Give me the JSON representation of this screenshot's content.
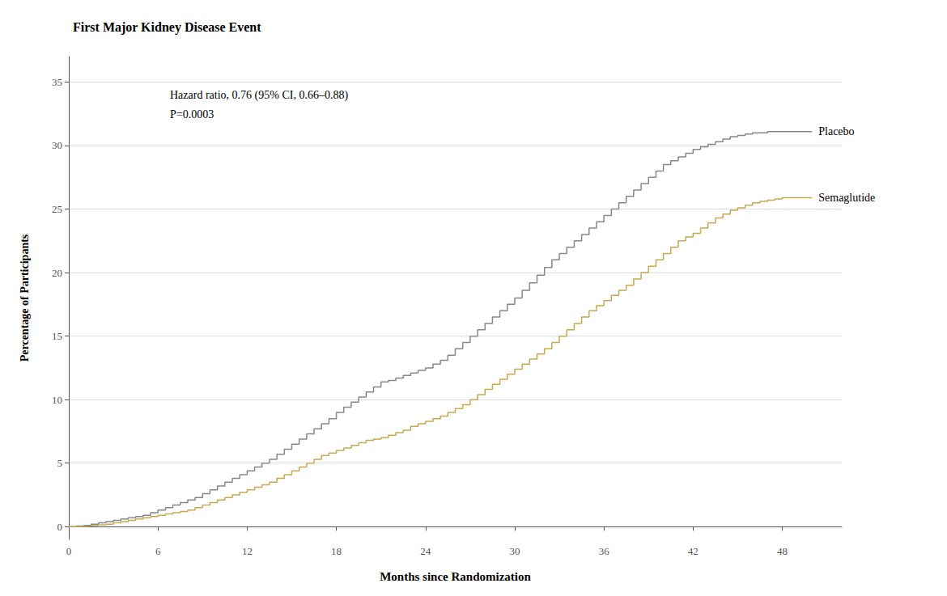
{
  "chart_data": {
    "type": "step",
    "title": "First Major Kidney Disease Event",
    "xlabel": "Months since Randomization",
    "ylabel": "Percentage of Participants",
    "annotations": [
      "Hazard ratio, 0.76 (95% CI, 0.66–0.88)",
      "P=0.0003"
    ],
    "x": [
      0,
      0.5,
      1,
      1.5,
      2,
      2.5,
      3,
      3.5,
      4,
      4.5,
      5,
      5.5,
      6,
      6.5,
      7,
      7.5,
      8,
      8.5,
      9,
      9.5,
      10,
      10.5,
      11,
      11.5,
      12,
      12.5,
      13,
      13.5,
      14,
      14.5,
      15,
      15.5,
      16,
      16.5,
      17,
      17.5,
      18,
      18.5,
      19,
      19.5,
      20,
      20.5,
      21,
      21.5,
      22,
      22.5,
      23,
      23.5,
      24,
      24.5,
      25,
      25.5,
      26,
      26.5,
      27,
      27.5,
      28,
      28.5,
      29,
      29.5,
      30,
      30.5,
      31,
      31.5,
      32,
      32.5,
      33,
      33.5,
      34,
      34.5,
      35,
      35.5,
      36,
      36.5,
      37,
      37.5,
      38,
      38.5,
      39,
      39.5,
      40,
      40.5,
      41,
      41.5,
      42,
      42.5,
      43,
      43.5,
      44,
      44.5,
      45,
      45.5,
      46,
      46.5,
      47,
      47.5,
      48,
      48.5,
      49,
      49.5,
      50
    ],
    "series": [
      {
        "name": "Placebo",
        "color": "#888888",
        "values": [
          0,
          0.05,
          0.1,
          0.2,
          0.3,
          0.4,
          0.5,
          0.6,
          0.7,
          0.8,
          0.9,
          1.1,
          1.3,
          1.5,
          1.7,
          1.9,
          2.1,
          2.3,
          2.6,
          2.9,
          3.2,
          3.5,
          3.8,
          4.1,
          4.4,
          4.7,
          5.0,
          5.3,
          5.7,
          6.1,
          6.5,
          6.9,
          7.3,
          7.7,
          8.1,
          8.5,
          9.0,
          9.4,
          9.8,
          10.2,
          10.6,
          11.0,
          11.4,
          11.5,
          11.7,
          11.9,
          12.1,
          12.3,
          12.5,
          12.8,
          13.1,
          13.5,
          14.0,
          14.5,
          15.0,
          15.5,
          16.0,
          16.5,
          17.0,
          17.5,
          18.0,
          18.6,
          19.2,
          19.8,
          20.4,
          21.0,
          21.5,
          22.0,
          22.5,
          23.0,
          23.5,
          24.0,
          24.5,
          25.0,
          25.5,
          26.0,
          26.5,
          27.0,
          27.5,
          28.0,
          28.5,
          28.8,
          29.1,
          29.4,
          29.7,
          29.9,
          30.1,
          30.3,
          30.5,
          30.7,
          30.8,
          30.9,
          31.0,
          31.0,
          31.1,
          31.1,
          31.1,
          31.1,
          31.1,
          31.1,
          31.1
        ]
      },
      {
        "name": "Semaglutide",
        "color": "#C8A850",
        "values": [
          0,
          0.02,
          0.05,
          0.1,
          0.15,
          0.2,
          0.3,
          0.4,
          0.5,
          0.6,
          0.7,
          0.8,
          0.9,
          1.0,
          1.1,
          1.2,
          1.3,
          1.5,
          1.7,
          1.9,
          2.1,
          2.3,
          2.5,
          2.7,
          2.9,
          3.1,
          3.3,
          3.5,
          3.8,
          4.1,
          4.4,
          4.7,
          5.0,
          5.3,
          5.6,
          5.8,
          6.0,
          6.2,
          6.4,
          6.6,
          6.8,
          6.9,
          7.0,
          7.2,
          7.4,
          7.6,
          7.9,
          8.1,
          8.3,
          8.5,
          8.7,
          9.0,
          9.3,
          9.6,
          10.0,
          10.4,
          10.8,
          11.2,
          11.6,
          12.0,
          12.4,
          12.8,
          13.2,
          13.6,
          14.0,
          14.5,
          15.0,
          15.5,
          16.0,
          16.5,
          17.0,
          17.4,
          17.8,
          18.2,
          18.6,
          19.0,
          19.5,
          20.0,
          20.5,
          21.0,
          21.5,
          22.0,
          22.5,
          22.8,
          23.1,
          23.5,
          23.9,
          24.3,
          24.6,
          24.9,
          25.1,
          25.3,
          25.5,
          25.6,
          25.7,
          25.8,
          25.9,
          25.9,
          25.9,
          25.9,
          25.9
        ]
      }
    ],
    "xlim": [
      0,
      52
    ],
    "ylim": [
      -1,
      37
    ],
    "xticks": [
      0,
      6,
      12,
      18,
      24,
      30,
      36,
      42,
      48
    ],
    "yticks": [
      0,
      5,
      10,
      15,
      20,
      25,
      30,
      35
    ],
    "grid": true
  }
}
